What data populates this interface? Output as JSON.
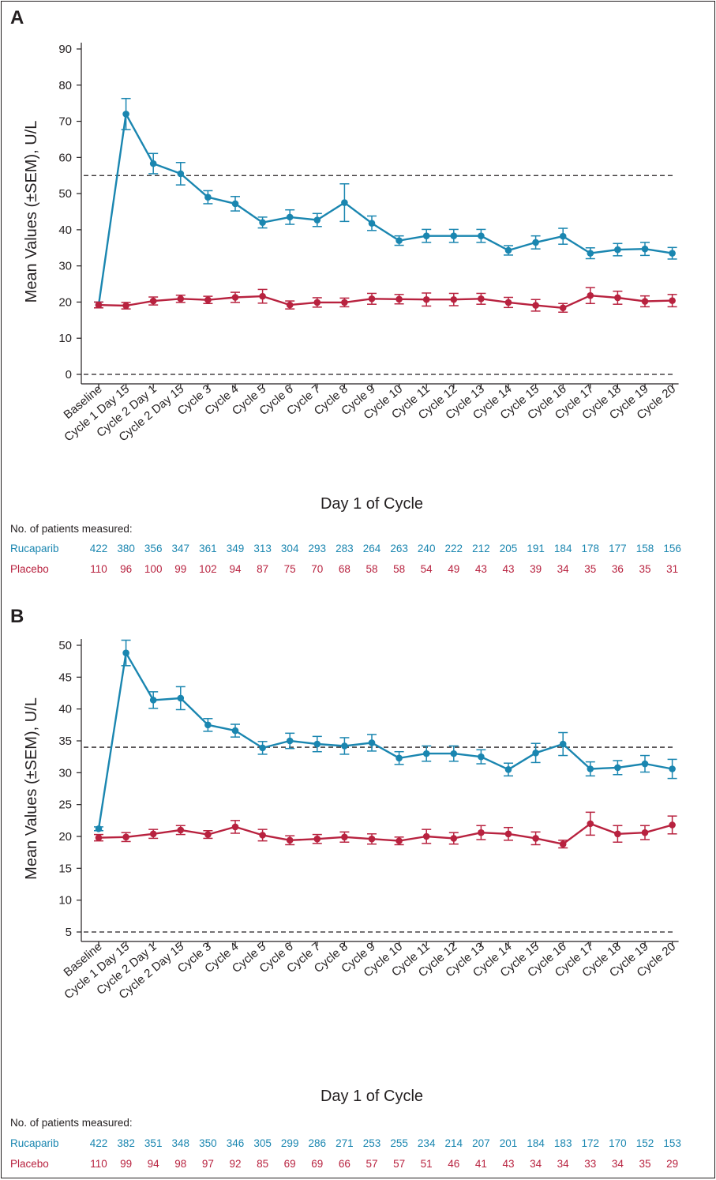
{
  "colors": {
    "rucaparib": "#1a86b0",
    "placebo": "#b8223f",
    "axis": "#231f20"
  },
  "chart_data": [
    {
      "type": "line",
      "panel_label": "A",
      "xlabel": "Day 1 of Cycle",
      "ylabel": "Mean Values (±SEM), U/L",
      "ylim": [
        0,
        90
      ],
      "yticks": [
        0,
        10,
        20,
        30,
        40,
        50,
        60,
        70,
        80,
        90
      ],
      "reference_lines": [
        55,
        0
      ],
      "categories": [
        "Baseline",
        "Cycle 1 Day 15",
        "Cycle 2 Day 1",
        "Cycle 2 Day 15",
        "Cycle 3",
        "Cycle 4",
        "Cycle 5",
        "Cycle 6",
        "Cycle 7",
        "Cycle 8",
        "Cycle 9",
        "Cycle 10",
        "Cycle 11",
        "Cycle 12",
        "Cycle 13",
        "Cycle 14",
        "Cycle 15",
        "Cycle 16",
        "Cycle 17",
        "Cycle 18",
        "Cycle 19",
        "Cycle 20"
      ],
      "series": [
        {
          "name": "Rucaparib",
          "color": "#1a86b0",
          "values": [
            19.2,
            72,
            58.3,
            55.5,
            49,
            47.2,
            42,
            43.5,
            42.7,
            47.5,
            41.8,
            37,
            38.3,
            38.3,
            38.3,
            34.3,
            36.5,
            38.2,
            33.5,
            34.5,
            34.7,
            33.5
          ],
          "sem": [
            0.8,
            4.3,
            2.8,
            3.1,
            1.8,
            2.0,
            1.5,
            2.0,
            1.8,
            5.2,
            2.0,
            1.3,
            1.8,
            1.8,
            1.8,
            1.3,
            1.8,
            2.2,
            1.5,
            1.7,
            1.8,
            1.6
          ]
        },
        {
          "name": "Placebo",
          "color": "#b8223f",
          "values": [
            19.2,
            19,
            20.3,
            20.9,
            20.6,
            21.3,
            21.6,
            19.2,
            19.9,
            19.9,
            20.9,
            20.8,
            20.7,
            20.7,
            20.9,
            19.9,
            19.1,
            18.4,
            21.8,
            21.2,
            20.2,
            20.4
          ],
          "sem": [
            0.8,
            0.9,
            1.1,
            1.0,
            1.0,
            1.4,
            1.9,
            1.1,
            1.3,
            1.2,
            1.5,
            1.3,
            1.8,
            1.7,
            1.5,
            1.4,
            1.6,
            1.2,
            2.2,
            1.8,
            1.5,
            1.7
          ]
        }
      ],
      "patients_caption": "No. of patients measured:",
      "patients": [
        {
          "label": "Rucaparib",
          "color": "#1a86b0",
          "counts": [
            "422",
            "380",
            "356",
            "347",
            "361",
            "349",
            "313",
            "304",
            "293",
            "283",
            "264",
            "263",
            "240",
            "222",
            "212",
            "205",
            "191",
            "184",
            "178",
            "177",
            "158",
            "156"
          ]
        },
        {
          "label": "Placebo",
          "color": "#b8223f",
          "counts": [
            "110",
            "96",
            "100",
            "99",
            "102",
            "94",
            "87",
            "75",
            "70",
            "68",
            "58",
            "58",
            "54",
            "49",
            "43",
            "43",
            "39",
            "34",
            "35",
            "36",
            "35",
            "31"
          ]
        }
      ]
    },
    {
      "type": "line",
      "panel_label": "B",
      "xlabel": "Day 1 of Cycle",
      "ylabel": "Mean Values (±SEM), U/L",
      "ylim": [
        5,
        50
      ],
      "yticks": [
        5,
        10,
        15,
        20,
        25,
        30,
        35,
        40,
        45,
        50
      ],
      "reference_lines": [
        34,
        5
      ],
      "categories": [
        "Baseline",
        "Cycle 1 Day 15",
        "Cycle 2 Day 1",
        "Cycle 2 Day 15",
        "Cycle 3",
        "Cycle 4",
        "Cycle 5",
        "Cycle 6",
        "Cycle 7",
        "Cycle 8",
        "Cycle 9",
        "Cycle 10",
        "Cycle 11",
        "Cycle 12",
        "Cycle 13",
        "Cycle 14",
        "Cycle 15",
        "Cycle 16",
        "Cycle 17",
        "Cycle 18",
        "Cycle 19",
        "Cycle 20"
      ],
      "series": [
        {
          "name": "Rucaparib",
          "color": "#1a86b0",
          "values": [
            21.2,
            48.8,
            41.4,
            41.7,
            37.5,
            36.6,
            33.9,
            35,
            34.5,
            34.2,
            34.7,
            32.3,
            33,
            33,
            32.5,
            30.5,
            33.1,
            34.5,
            30.6,
            30.8,
            31.4,
            30.6
          ],
          "sem": [
            0.3,
            2.0,
            1.3,
            1.8,
            1.0,
            1.0,
            1.0,
            1.2,
            1.2,
            1.3,
            1.3,
            1.0,
            1.2,
            1.2,
            1.1,
            1.0,
            1.5,
            1.8,
            1.1,
            1.1,
            1.3,
            1.5
          ]
        },
        {
          "name": "Placebo",
          "color": "#b8223f",
          "values": [
            19.8,
            19.9,
            20.4,
            21,
            20.3,
            21.5,
            20.2,
            19.4,
            19.6,
            19.9,
            19.6,
            19.3,
            20,
            19.7,
            20.6,
            20.4,
            19.7,
            18.8,
            22,
            20.4,
            20.6,
            21.8
          ],
          "sem": [
            0.5,
            0.7,
            0.7,
            0.7,
            0.6,
            1.0,
            0.9,
            0.7,
            0.7,
            0.8,
            0.8,
            0.6,
            1.1,
            0.9,
            1.1,
            1.0,
            1.0,
            0.6,
            1.8,
            1.3,
            1.1,
            1.4
          ]
        }
      ],
      "patients_caption": "No. of patients measured:",
      "patients": [
        {
          "label": "Rucaparib",
          "color": "#1a86b0",
          "counts": [
            "422",
            "382",
            "351",
            "348",
            "350",
            "346",
            "305",
            "299",
            "286",
            "271",
            "253",
            "255",
            "234",
            "214",
            "207",
            "201",
            "184",
            "183",
            "172",
            "170",
            "152",
            "153"
          ]
        },
        {
          "label": "Placebo",
          "color": "#b8223f",
          "counts": [
            "110",
            "99",
            "94",
            "98",
            "97",
            "92",
            "85",
            "69",
            "69",
            "66",
            "57",
            "57",
            "51",
            "46",
            "41",
            "43",
            "34",
            "34",
            "33",
            "34",
            "35",
            "29"
          ]
        }
      ]
    }
  ]
}
